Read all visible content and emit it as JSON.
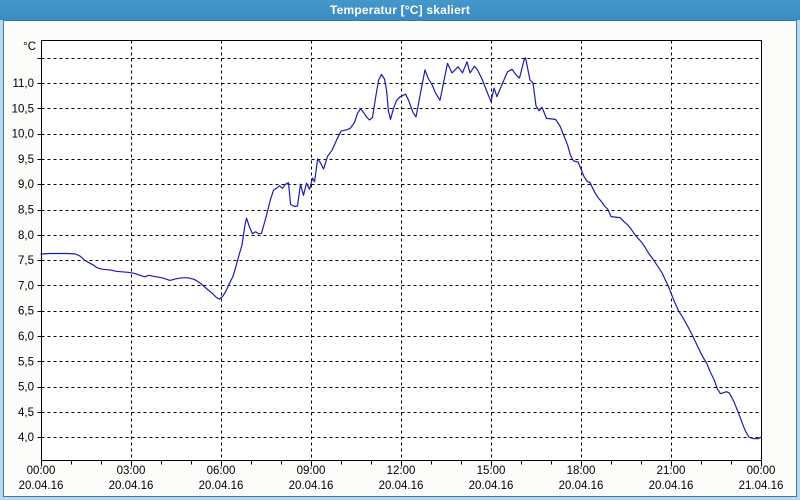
{
  "window": {
    "title": "Temperatur [°C] skaliert"
  },
  "theme": {
    "titlebar_color": "#3E91C5",
    "frame_color": "#B9D8EC",
    "frame_border_color": "#3579AD",
    "panel_bg": "#FCFDFA",
    "plot_bg": "#FFFFFF",
    "grid_color": "#000000",
    "line_color": "#1C1CB2",
    "text_color": "#000000"
  },
  "chart_data": {
    "type": "line",
    "title": "Temperatur [°C] skaliert",
    "xlabel": "",
    "ylabel": "°C",
    "grid": "dashed",
    "legend": "none",
    "y_axis": {
      "unit": "°C",
      "range": [
        3.55,
        11.85
      ],
      "ticks": [
        {
          "v": 4.0,
          "label": "4,0"
        },
        {
          "v": 4.5,
          "label": "4,5"
        },
        {
          "v": 5.0,
          "label": "5,0"
        },
        {
          "v": 5.5,
          "label": "5,5"
        },
        {
          "v": 6.0,
          "label": "6,0"
        },
        {
          "v": 6.5,
          "label": "6,5"
        },
        {
          "v": 7.0,
          "label": "7,0"
        },
        {
          "v": 7.5,
          "label": "7,5"
        },
        {
          "v": 8.0,
          "label": "8,0"
        },
        {
          "v": 8.5,
          "label": "8,5"
        },
        {
          "v": 9.0,
          "label": "9,0"
        },
        {
          "v": 9.5,
          "label": "9,5"
        },
        {
          "v": 10.0,
          "label": "10,0"
        },
        {
          "v": 10.5,
          "label": "10,5"
        },
        {
          "v": 11.0,
          "label": "11,0"
        }
      ],
      "grid_values": [
        4,
        4.5,
        5,
        5.5,
        6,
        6.5,
        7,
        7.5,
        8,
        8.5,
        9,
        9.5,
        10,
        10.5,
        11,
        11.5
      ]
    },
    "x_axis": {
      "range_hours": [
        0,
        24
      ],
      "minor_tick_every_hours": 1,
      "grid_hours": [
        3,
        6,
        9,
        12,
        15,
        18,
        21
      ],
      "major_ticks": [
        {
          "h": 0,
          "time": "00:00",
          "date": "20.04.16"
        },
        {
          "h": 3,
          "time": "03:00",
          "date": "20.04.16"
        },
        {
          "h": 6,
          "time": "06:00",
          "date": "20.04.16"
        },
        {
          "h": 9,
          "time": "09:00",
          "date": "20.04.16"
        },
        {
          "h": 12,
          "time": "12:00",
          "date": "20.04.16"
        },
        {
          "h": 15,
          "time": "15:00",
          "date": "20.04.16"
        },
        {
          "h": 18,
          "time": "18:00",
          "date": "20.04.16"
        },
        {
          "h": 21,
          "time": "21:00",
          "date": "20.04.16"
        },
        {
          "h": 24,
          "time": "00:00",
          "date": "21.04.16"
        }
      ]
    },
    "series": [
      {
        "name": "Temperatur [°C]",
        "color": "#1C1CB2",
        "points": [
          [
            0.0,
            7.62
          ],
          [
            0.3,
            7.63
          ],
          [
            0.6,
            7.63
          ],
          [
            0.9,
            7.63
          ],
          [
            1.15,
            7.62
          ],
          [
            1.3,
            7.58
          ],
          [
            1.45,
            7.5
          ],
          [
            1.6,
            7.45
          ],
          [
            1.75,
            7.4
          ],
          [
            1.9,
            7.34
          ],
          [
            2.05,
            7.32
          ],
          [
            2.2,
            7.31
          ],
          [
            2.35,
            7.3
          ],
          [
            2.5,
            7.28
          ],
          [
            2.7,
            7.27
          ],
          [
            2.9,
            7.26
          ],
          [
            3.1,
            7.24
          ],
          [
            3.3,
            7.2
          ],
          [
            3.45,
            7.17
          ],
          [
            3.6,
            7.2
          ],
          [
            3.75,
            7.18
          ],
          [
            3.95,
            7.16
          ],
          [
            4.1,
            7.14
          ],
          [
            4.3,
            7.1
          ],
          [
            4.5,
            7.13
          ],
          [
            4.7,
            7.15
          ],
          [
            4.9,
            7.15
          ],
          [
            5.1,
            7.12
          ],
          [
            5.25,
            7.07
          ],
          [
            5.4,
            7.0
          ],
          [
            5.55,
            6.92
          ],
          [
            5.7,
            6.85
          ],
          [
            5.85,
            6.76
          ],
          [
            5.95,
            6.73
          ],
          [
            6.05,
            6.78
          ],
          [
            6.15,
            6.87
          ],
          [
            6.25,
            7.0
          ],
          [
            6.4,
            7.18
          ],
          [
            6.5,
            7.38
          ],
          [
            6.6,
            7.6
          ],
          [
            6.7,
            7.8
          ],
          [
            6.8,
            8.2
          ],
          [
            6.85,
            8.33
          ],
          [
            6.95,
            8.15
          ],
          [
            7.05,
            8.02
          ],
          [
            7.15,
            8.06
          ],
          [
            7.25,
            8.02
          ],
          [
            7.35,
            8.03
          ],
          [
            7.5,
            8.35
          ],
          [
            7.65,
            8.7
          ],
          [
            7.75,
            8.88
          ],
          [
            7.85,
            8.92
          ],
          [
            7.95,
            8.97
          ],
          [
            8.05,
            8.92
          ],
          [
            8.15,
            9.0
          ],
          [
            8.25,
            9.03
          ],
          [
            8.32,
            8.6
          ],
          [
            8.45,
            8.56
          ],
          [
            8.55,
            8.57
          ],
          [
            8.65,
            9.0
          ],
          [
            8.75,
            8.78
          ],
          [
            8.85,
            9.02
          ],
          [
            8.95,
            8.9
          ],
          [
            9.05,
            9.12
          ],
          [
            9.12,
            9.05
          ],
          [
            9.22,
            9.5
          ],
          [
            9.32,
            9.42
          ],
          [
            9.42,
            9.3
          ],
          [
            9.55,
            9.55
          ],
          [
            9.7,
            9.67
          ],
          [
            9.85,
            9.87
          ],
          [
            10.0,
            10.05
          ],
          [
            10.15,
            10.07
          ],
          [
            10.3,
            10.1
          ],
          [
            10.45,
            10.22
          ],
          [
            10.55,
            10.4
          ],
          [
            10.65,
            10.49
          ],
          [
            10.75,
            10.42
          ],
          [
            10.85,
            10.33
          ],
          [
            10.95,
            10.27
          ],
          [
            11.05,
            10.32
          ],
          [
            11.15,
            10.7
          ],
          [
            11.25,
            11.05
          ],
          [
            11.35,
            11.17
          ],
          [
            11.45,
            11.08
          ],
          [
            11.52,
            10.85
          ],
          [
            11.58,
            10.45
          ],
          [
            11.65,
            10.28
          ],
          [
            11.75,
            10.5
          ],
          [
            11.85,
            10.65
          ],
          [
            11.95,
            10.72
          ],
          [
            12.05,
            10.75
          ],
          [
            12.15,
            10.78
          ],
          [
            12.25,
            10.66
          ],
          [
            12.4,
            10.42
          ],
          [
            12.5,
            10.33
          ],
          [
            12.65,
            10.8
          ],
          [
            12.8,
            11.26
          ],
          [
            12.9,
            11.1
          ],
          [
            13.05,
            10.95
          ],
          [
            13.15,
            10.8
          ],
          [
            13.3,
            10.66
          ],
          [
            13.45,
            11.1
          ],
          [
            13.55,
            11.39
          ],
          [
            13.7,
            11.2
          ],
          [
            13.9,
            11.32
          ],
          [
            14.05,
            11.2
          ],
          [
            14.2,
            11.42
          ],
          [
            14.3,
            11.2
          ],
          [
            14.45,
            11.33
          ],
          [
            14.55,
            11.26
          ],
          [
            14.7,
            11.08
          ],
          [
            14.85,
            10.85
          ],
          [
            15.0,
            10.63
          ],
          [
            15.1,
            10.9
          ],
          [
            15.2,
            10.73
          ],
          [
            15.35,
            10.95
          ],
          [
            15.55,
            11.22
          ],
          [
            15.7,
            11.27
          ],
          [
            15.85,
            11.15
          ],
          [
            15.95,
            11.1
          ],
          [
            16.1,
            11.45
          ],
          [
            16.15,
            11.5
          ],
          [
            16.3,
            11.06
          ],
          [
            16.4,
            11.0
          ],
          [
            16.5,
            10.55
          ],
          [
            16.6,
            10.45
          ],
          [
            16.7,
            10.52
          ],
          [
            16.85,
            10.3
          ],
          [
            17.0,
            10.29
          ],
          [
            17.15,
            10.28
          ],
          [
            17.3,
            10.15
          ],
          [
            17.4,
            10.0
          ],
          [
            17.55,
            9.78
          ],
          [
            17.65,
            9.57
          ],
          [
            17.75,
            9.46
          ],
          [
            17.9,
            9.44
          ],
          [
            18.0,
            9.3
          ],
          [
            18.1,
            9.15
          ],
          [
            18.2,
            9.06
          ],
          [
            18.3,
            9.03
          ],
          [
            18.45,
            8.85
          ],
          [
            18.55,
            8.75
          ],
          [
            18.7,
            8.64
          ],
          [
            18.8,
            8.56
          ],
          [
            18.9,
            8.5
          ],
          [
            19.0,
            8.36
          ],
          [
            19.15,
            8.35
          ],
          [
            19.3,
            8.34
          ],
          [
            19.45,
            8.25
          ],
          [
            19.55,
            8.2
          ],
          [
            19.65,
            8.13
          ],
          [
            19.8,
            8.0
          ],
          [
            19.95,
            7.9
          ],
          [
            20.05,
            7.83
          ],
          [
            20.15,
            7.74
          ],
          [
            20.25,
            7.64
          ],
          [
            20.4,
            7.52
          ],
          [
            20.5,
            7.43
          ],
          [
            20.6,
            7.34
          ],
          [
            20.7,
            7.25
          ],
          [
            20.8,
            7.12
          ],
          [
            20.9,
            7.0
          ],
          [
            21.0,
            6.85
          ],
          [
            21.1,
            6.7
          ],
          [
            21.25,
            6.5
          ],
          [
            21.4,
            6.36
          ],
          [
            21.55,
            6.2
          ],
          [
            21.7,
            6.03
          ],
          [
            21.9,
            5.78
          ],
          [
            22.05,
            5.6
          ],
          [
            22.2,
            5.45
          ],
          [
            22.3,
            5.3
          ],
          [
            22.45,
            5.12
          ],
          [
            22.55,
            4.95
          ],
          [
            22.65,
            4.86
          ],
          [
            22.75,
            4.88
          ],
          [
            22.85,
            4.9
          ],
          [
            22.95,
            4.87
          ],
          [
            23.1,
            4.7
          ],
          [
            23.2,
            4.55
          ],
          [
            23.3,
            4.4
          ],
          [
            23.4,
            4.24
          ],
          [
            23.5,
            4.1
          ],
          [
            23.6,
            4.0
          ],
          [
            23.75,
            3.97
          ],
          [
            23.9,
            3.97
          ],
          [
            24.0,
            4.0
          ]
        ]
      }
    ]
  }
}
